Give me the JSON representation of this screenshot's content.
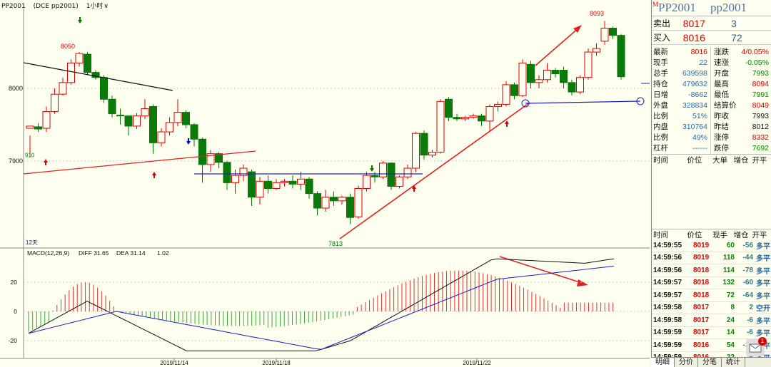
{
  "toolbar": {
    "symbol": "PP2001",
    "exchange": "(DCE pp2001)",
    "period": "1小时",
    "period_arrow": "∨"
  },
  "chart_data": [
    {
      "type": "candlestick",
      "y_labels": [
        "8000",
        "7900"
      ],
      "annotations": [
        "8050",
        "8093",
        "7813",
        "910",
        "12天"
      ],
      "x_labels": [
        "2019/11/14",
        "2019/11/18",
        "2019/11/22"
      ],
      "candles": [
        [
          7945,
          7948,
          7935,
          7905
        ],
        [
          7947,
          7944,
          7952,
          7940
        ],
        [
          7945,
          7968,
          7975,
          7940
        ],
        [
          7968,
          7992,
          8000,
          7965
        ],
        [
          7992,
          8008,
          8015,
          7990
        ],
        [
          8008,
          8035,
          8040,
          8005
        ],
        [
          8035,
          8048,
          8050,
          8030
        ],
        [
          8047,
          8022,
          8050,
          8018
        ],
        [
          8022,
          8015,
          8025,
          8012
        ],
        [
          8015,
          7985,
          8018,
          7980
        ],
        [
          7985,
          7965,
          7990,
          7960
        ],
        [
          7963,
          7962,
          7972,
          7950
        ],
        [
          7962,
          7948,
          7962,
          7935
        ],
        [
          7948,
          7962,
          7966,
          7944
        ],
        [
          7962,
          7972,
          7985,
          7958
        ],
        [
          7975,
          7925,
          7978,
          7910
        ],
        [
          7925,
          7940,
          7945,
          7920
        ],
        [
          7940,
          7953,
          7960,
          7935
        ],
        [
          7953,
          7967,
          7985,
          7948
        ],
        [
          7967,
          7950,
          7970,
          7945
        ],
        [
          7950,
          7930,
          7952,
          7920
        ],
        [
          7930,
          7895,
          7932,
          7870
        ],
        [
          7895,
          7910,
          7915,
          7885
        ],
        [
          7910,
          7898,
          7912,
          7890
        ],
        [
          7898,
          7870,
          7900,
          7860
        ],
        [
          7870,
          7880,
          7888,
          7855
        ],
        [
          7880,
          7890,
          7895,
          7872
        ],
        [
          7885,
          7850,
          7888,
          7838
        ],
        [
          7850,
          7872,
          7878,
          7840
        ],
        [
          7872,
          7862,
          7880,
          7855
        ],
        [
          7862,
          7870,
          7875,
          7860
        ],
        [
          7870,
          7872,
          7875,
          7865
        ],
        [
          7872,
          7868,
          7880,
          7862
        ],
        [
          7868,
          7875,
          7885,
          7860
        ],
        [
          7875,
          7855,
          7878,
          7848
        ],
        [
          7855,
          7835,
          7858,
          7825
        ],
        [
          7835,
          7850,
          7860,
          7830
        ],
        [
          7850,
          7845,
          7858,
          7838
        ],
        [
          7845,
          7850,
          7852,
          7840
        ],
        [
          7850,
          7822,
          7855,
          7813
        ],
        [
          7823,
          7862,
          7866,
          7820
        ],
        [
          7862,
          7880,
          7885,
          7858
        ],
        [
          7880,
          7878,
          7885,
          7870
        ],
        [
          7878,
          7897,
          7900,
          7875
        ],
        [
          7897,
          7865,
          7898,
          7860
        ],
        [
          7865,
          7878,
          7880,
          7862
        ],
        [
          7878,
          7890,
          7895,
          7875
        ],
        [
          7890,
          7938,
          7940,
          7885
        ],
        [
          7938,
          7908,
          7942,
          7902
        ],
        [
          7908,
          7912,
          7915,
          7905
        ],
        [
          7912,
          7982,
          7985,
          7910
        ],
        [
          7985,
          7960,
          7988,
          7955
        ],
        [
          7960,
          7958,
          7965,
          7955
        ],
        [
          7958,
          7960,
          7962,
          7955
        ],
        [
          7960,
          7962,
          7965,
          7958
        ],
        [
          7962,
          7955,
          7965,
          7948
        ],
        [
          7955,
          7975,
          7978,
          7940
        ],
        [
          7975,
          7978,
          7982,
          7968
        ],
        [
          7978,
          8005,
          8010,
          7975
        ],
        [
          8005,
          7990,
          8008,
          7985
        ],
        [
          7990,
          8035,
          8040,
          7988
        ],
        [
          8033,
          8008,
          8038,
          8000
        ],
        [
          8008,
          8012,
          8018,
          8000
        ],
        [
          8012,
          8025,
          8035,
          8008
        ],
        [
          8025,
          8020,
          8028,
          8015
        ],
        [
          8025,
          8008,
          8030,
          8000
        ],
        [
          8008,
          7995,
          8012,
          7990
        ],
        [
          7995,
          8015,
          8018,
          7992
        ],
        [
          8015,
          8050,
          8055,
          8012
        ],
        [
          8050,
          8055,
          8062,
          8045
        ],
        [
          8065,
          8083,
          8093,
          8060
        ],
        [
          8083,
          8073,
          8085,
          8068
        ],
        [
          8073,
          8016,
          8075,
          8012
        ]
      ]
    },
    {
      "type": "macd",
      "label": "MACD(12,26,9)",
      "diff_label": "DIFF 31.65",
      "dea_label": "DEA 31.14",
      "macd_value": "1.02",
      "y_labels": [
        "20",
        "0",
        "-20"
      ]
    }
  ],
  "quote": {
    "flag": "M",
    "code1": "PP2001",
    "code2": "pp2001",
    "ask_label": "卖出",
    "ask_price": "8017",
    "ask_vol": "3",
    "bid_label": "买入",
    "bid_price": "8016",
    "bid_vol": "72",
    "rows": [
      {
        "k": "最新",
        "v": "8016",
        "vc": "red",
        "k2": "涨跌",
        "v2": "4/0.05%",
        "v2c": "red"
      },
      {
        "k": "现手",
        "v": "22",
        "vc": "blue",
        "k2": "速涨",
        "v2": "-0.05%",
        "v2c": "green"
      },
      {
        "k": "总手",
        "v": "639598",
        "vc": "blue",
        "k2": "开盘",
        "v2": "7993",
        "v2c": "green"
      },
      {
        "k": "持仓",
        "v": "479632",
        "vc": "blue",
        "k2": "最高",
        "v2": "8094",
        "v2c": "red"
      },
      {
        "k": "日增",
        "v": "-8662",
        "vc": "blue",
        "k2": "最低",
        "v2": "7991",
        "v2c": "green"
      },
      {
        "k": "外盘",
        "v": "328834",
        "vc": "blue",
        "k2": "结算价",
        "v2": "8049",
        "v2c": "red"
      },
      {
        "k": "比例",
        "v": "51%",
        "vc": "blue",
        "k2": "昨收",
        "v2": "7993",
        "v2c": "black"
      },
      {
        "k": "内盘",
        "v": "310764",
        "vc": "blue",
        "k2": "昨结",
        "v2": "8012",
        "v2c": "black"
      },
      {
        "k": "比例",
        "v": "49%",
        "vc": "blue",
        "k2": "涨停",
        "v2": "8332",
        "v2c": "red"
      },
      {
        "k": "杠杆",
        "v": "------",
        "vc": "blue",
        "k2": "跌停",
        "v2": "7692",
        "v2c": "green"
      }
    ],
    "big_hdr": [
      "时间",
      "价位",
      "大单",
      "增仓",
      "开平"
    ],
    "trade_hdr": [
      "时间",
      "价位",
      "现手",
      "增仓",
      "开平"
    ],
    "trades": [
      {
        "t": "14:59:55",
        "p": "8019",
        "v": "60",
        "d": "-56",
        "o": "多平"
      },
      {
        "t": "14:59:56",
        "p": "8019",
        "v": "118",
        "d": "-44",
        "o": "多平"
      },
      {
        "t": "14:59:56",
        "p": "8018",
        "v": "114",
        "d": "-78",
        "o": "多平"
      },
      {
        "t": "14:59:57",
        "p": "8018",
        "v": "132",
        "d": "-60",
        "o": "多平"
      },
      {
        "t": "14:59:57",
        "p": "8018",
        "v": "72",
        "d": "-64",
        "o": "多平"
      },
      {
        "t": "14:59:58",
        "p": "8017",
        "v": "8",
        "d": "2",
        "o": "空开"
      },
      {
        "t": "14:59:58",
        "p": "8017",
        "v": "24",
        "d": "-6",
        "o": "多平"
      },
      {
        "t": "14:59:59",
        "p": "8017",
        "v": "14",
        "d": "-6",
        "o": "多平"
      },
      {
        "t": "14:59:59",
        "p": "8016",
        "v": "54",
        "d": "-12",
        "o": "多平"
      },
      {
        "t": "14:59:59",
        "p": "8016",
        "v": "22",
        "d": "-6",
        "o": "多平"
      }
    ],
    "tabs": [
      "明细",
      "分价",
      "分笔",
      "统计"
    ],
    "mail_badge": "1"
  }
}
